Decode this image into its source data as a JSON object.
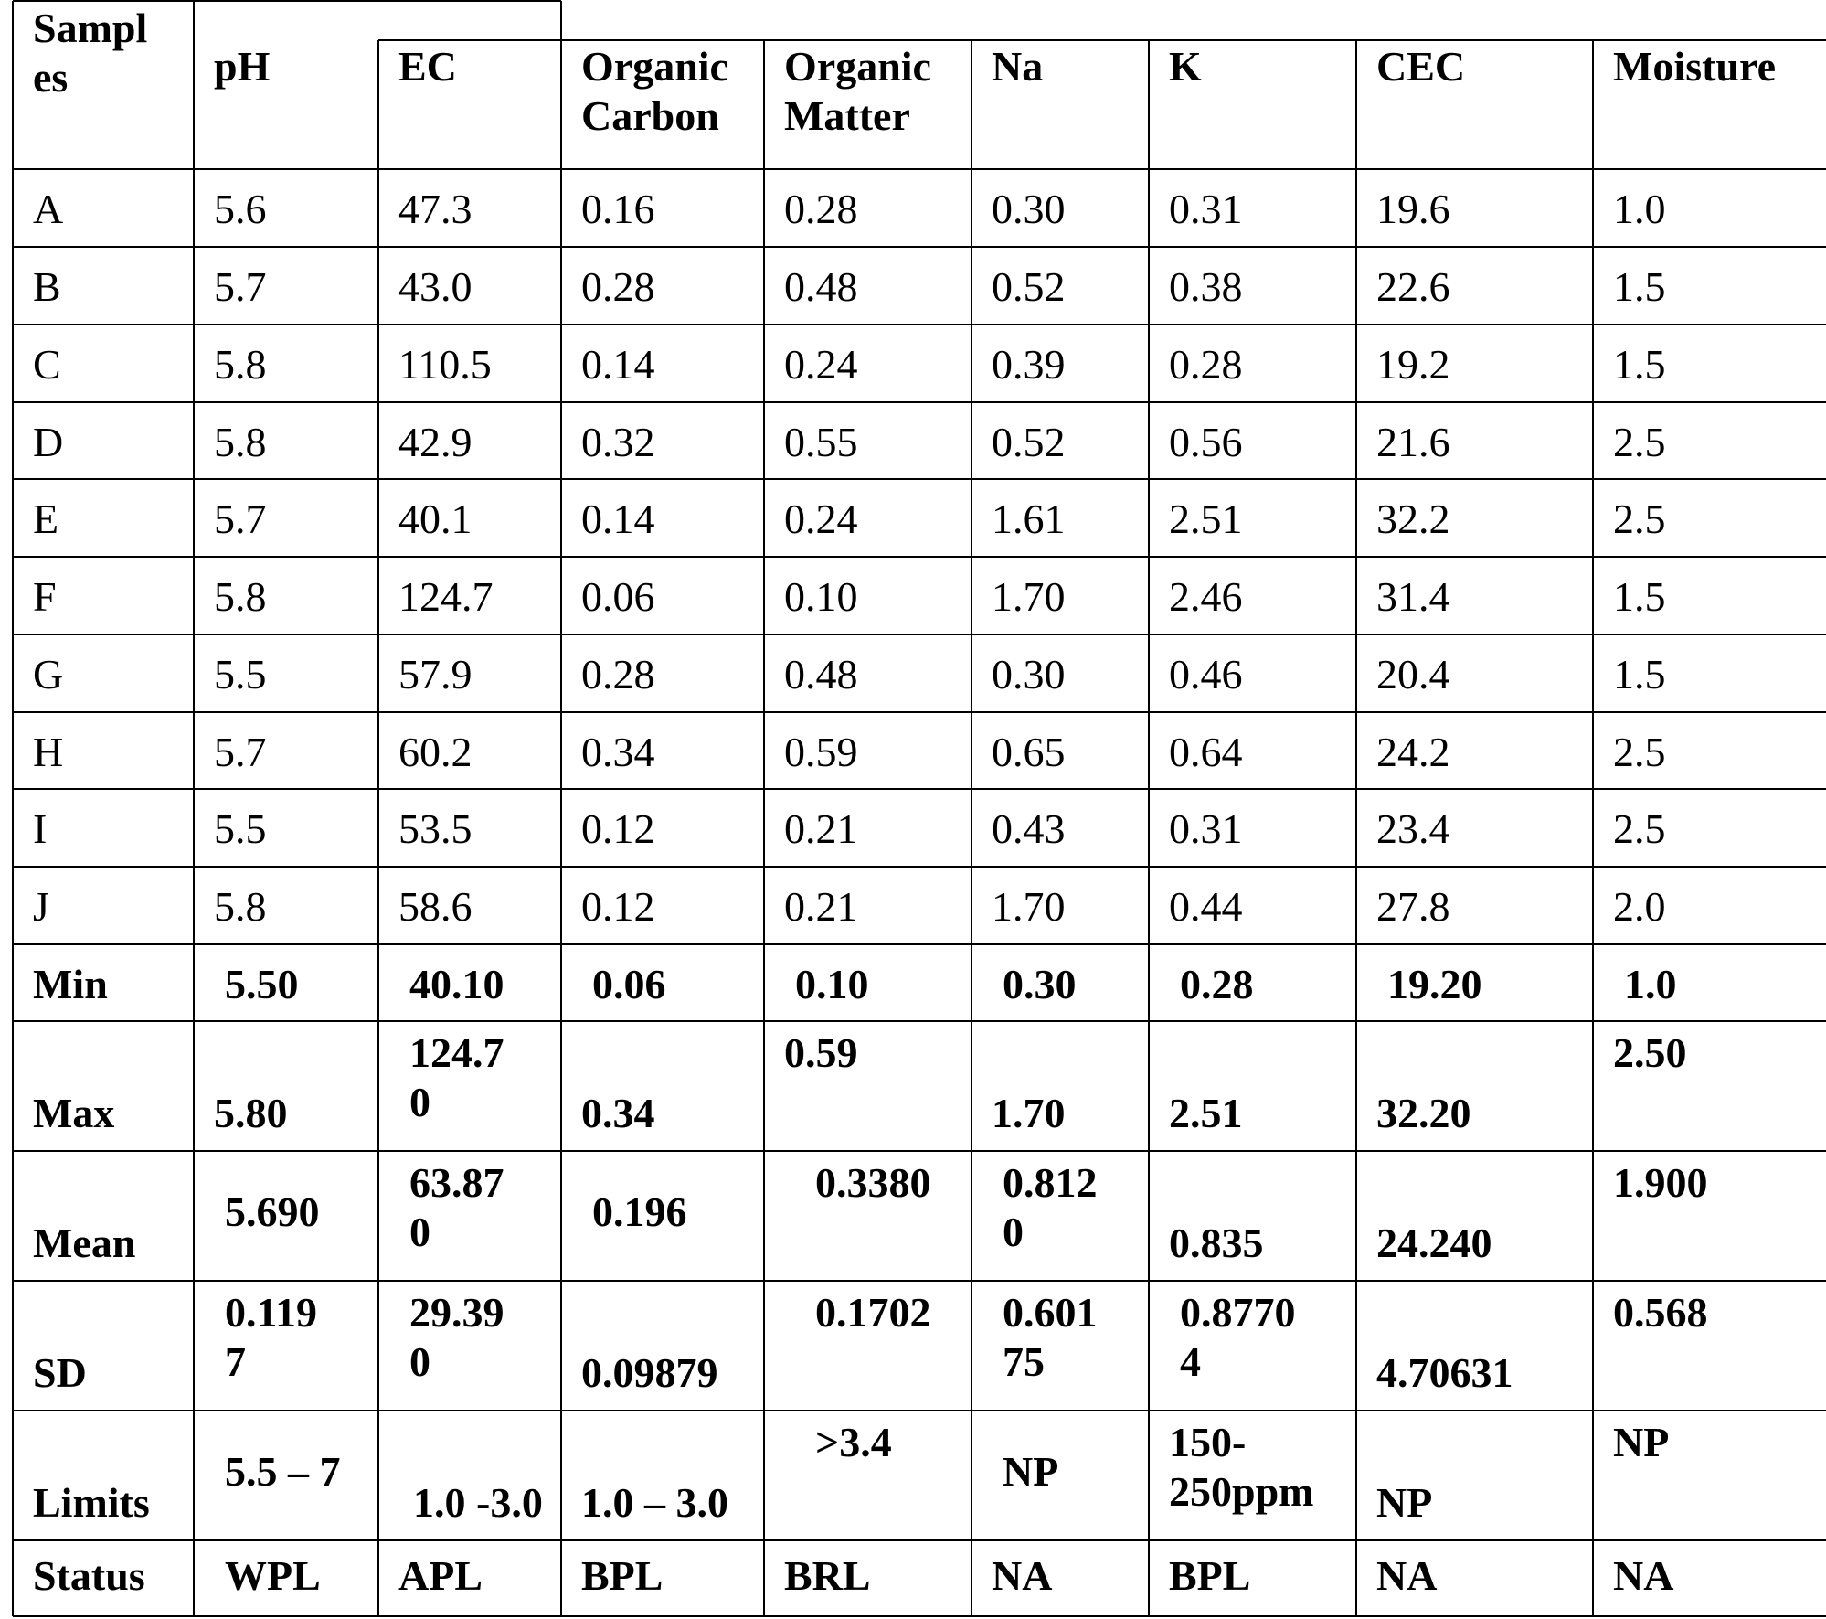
{
  "table": {
    "headers": {
      "samples": [
        "Sampl",
        "es"
      ],
      "ph": [
        "pH"
      ],
      "ec": [
        "EC"
      ],
      "organic_carbon": [
        "Organic",
        "Carbon"
      ],
      "organic_matter": [
        "Organic",
        "Matter"
      ],
      "na": [
        "Na"
      ],
      "k": [
        "K"
      ],
      "cec": [
        "CEC"
      ],
      "moisture": [
        "Moisture"
      ]
    },
    "rows": [
      [
        "A",
        "5.6",
        "47.3",
        "0.16",
        "0.28",
        "0.30",
        "0.31",
        "19.6",
        "1.0"
      ],
      [
        "B",
        "5.7",
        "43.0",
        "0.28",
        "0.48",
        "0.52",
        "0.38",
        "22.6",
        "1.5"
      ],
      [
        "C",
        "5.8",
        "110.5",
        "0.14",
        "0.24",
        "0.39",
        "0.28",
        "19.2",
        "1.5"
      ],
      [
        "D",
        "5.8",
        "42.9",
        "0.32",
        "0.55",
        "0.52",
        "0.56",
        "21.6",
        "2.5"
      ],
      [
        "E",
        "5.7",
        "40.1",
        "0.14",
        "0.24",
        "1.61",
        "2.51",
        "32.2",
        "2.5"
      ],
      [
        "F",
        "5.8",
        "124.7",
        "0.06",
        "0.10",
        "1.70",
        "2.46",
        "31.4",
        "1.5"
      ],
      [
        "G",
        "5.5",
        "57.9",
        "0.28",
        "0.48",
        "0.30",
        "0.46",
        "20.4",
        "1.5"
      ],
      [
        "H",
        "5.7",
        "60.2",
        "0.34",
        "0.59",
        "0.65",
        "0.64",
        "24.2",
        "2.5"
      ],
      [
        "I",
        "5.5",
        "53.5",
        "0.12",
        "0.21",
        "0.43",
        "0.31",
        "23.4",
        "2.5"
      ],
      [
        "J",
        "5.8",
        "58.6",
        "0.12",
        "0.21",
        "1.70",
        "0.44",
        "27.8",
        "2.0"
      ]
    ],
    "summary": {
      "min": [
        "Min",
        "5.50",
        "40.10",
        "0.06",
        "0.10",
        "0.30",
        "0.28",
        "19.20",
        "1.0"
      ],
      "max": [
        [
          "Max"
        ],
        [
          "5.80"
        ],
        [
          "124.7",
          "0"
        ],
        [
          "0.34"
        ],
        [
          "0.59"
        ],
        [
          "1.70"
        ],
        [
          "2.51"
        ],
        [
          "32.20"
        ],
        [
          "2.50"
        ]
      ],
      "mean": [
        [
          "Mean"
        ],
        [
          "5.690"
        ],
        [
          "63.87",
          "0"
        ],
        [
          "0.196"
        ],
        [
          "0.3380"
        ],
        [
          "0.812",
          "0"
        ],
        [
          "0.835"
        ],
        [
          "24.240"
        ],
        [
          "1.900"
        ]
      ],
      "sd": [
        [
          "SD"
        ],
        [
          "0.119",
          "7"
        ],
        [
          "29.39",
          "0"
        ],
        [
          "0.09879"
        ],
        [
          "0.1702"
        ],
        [
          "0.601",
          "75"
        ],
        [
          "0.8770",
          "4"
        ],
        [
          "4.70631"
        ],
        [
          "0.568"
        ]
      ],
      "limits": [
        [
          "Limits"
        ],
        [
          "5.5 – 7"
        ],
        [
          "1.0 -3.0"
        ],
        [
          "1.0 – 3.0"
        ],
        [
          ">3.4"
        ],
        [
          "NP"
        ],
        [
          "150-",
          "250ppm"
        ],
        [
          "NP"
        ],
        [
          "NP"
        ]
      ],
      "status": [
        "Status",
        "WPL",
        "APL",
        "BPL",
        "BRL",
        "NA",
        "BPL",
        "NA",
        "NA"
      ]
    }
  }
}
